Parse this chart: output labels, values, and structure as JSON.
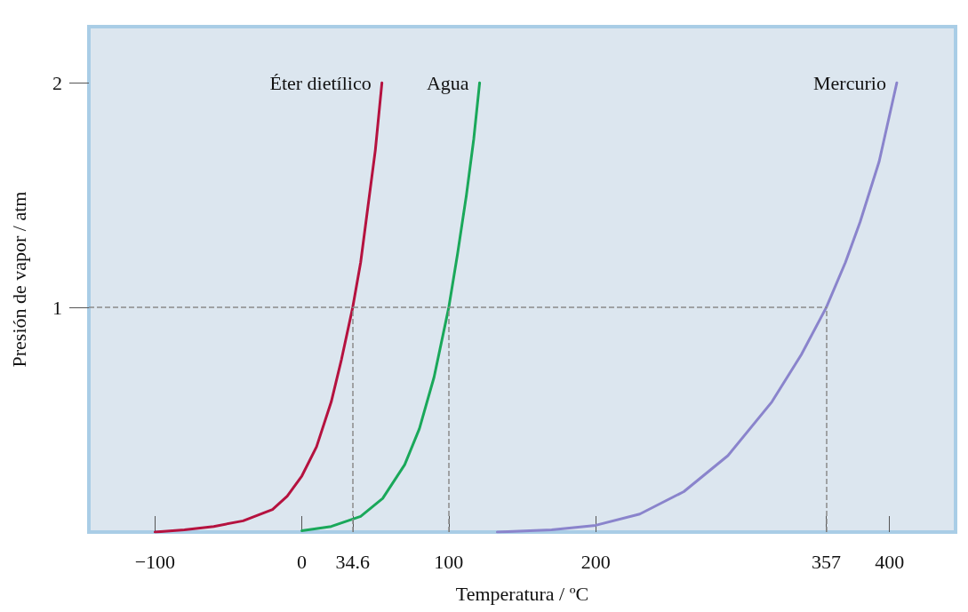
{
  "chart_data": {
    "type": "line",
    "xlabel": "Temperatura / ºC",
    "ylabel": "Presión de vapor / atm",
    "xlim": [
      -145,
      445
    ],
    "ylim": [
      0,
      2.25
    ],
    "xticks": [
      -100,
      0,
      34.6,
      100,
      200,
      357,
      400
    ],
    "yticks": [
      1,
      2
    ],
    "grid": false,
    "legend": false,
    "marker": "none",
    "line_style": "solid",
    "series": [
      {
        "name": "Éter dietílico",
        "color": "#b5123f",
        "x": [
          -100,
          -80,
          -60,
          -40,
          -20,
          -10,
          0,
          10,
          20,
          27,
          34.6,
          40,
          45,
          50,
          54.5
        ],
        "values": [
          0,
          0.01,
          0.025,
          0.05,
          0.1,
          0.16,
          0.25,
          0.38,
          0.58,
          0.77,
          1.0,
          1.2,
          1.45,
          1.7,
          2.0
        ]
      },
      {
        "name": "Agua",
        "color": "#1aa85a",
        "x": [
          0,
          20,
          40,
          55,
          70,
          80,
          90,
          100,
          106,
          112,
          117,
          121
        ],
        "values": [
          0.006,
          0.025,
          0.07,
          0.15,
          0.3,
          0.46,
          0.69,
          1.0,
          1.24,
          1.5,
          1.75,
          2.0
        ]
      },
      {
        "name": "Mercurio",
        "color": "#8a84cc",
        "x": [
          133,
          170,
          200,
          230,
          260,
          290,
          320,
          340,
          357,
          370,
          380,
          393,
          405
        ],
        "values": [
          0,
          0.01,
          0.03,
          0.08,
          0.18,
          0.34,
          0.58,
          0.79,
          1.0,
          1.2,
          1.38,
          1.65,
          2.0
        ]
      }
    ],
    "ref_lines": [
      {
        "axis": "y",
        "value": 1,
        "color": "#8a8a8a",
        "line_style": "dashed"
      },
      {
        "axis": "x",
        "value": 34.6,
        "color": "#8a8a8a",
        "line_style": "dashed"
      },
      {
        "axis": "x",
        "value": 100,
        "color": "#8a8a8a",
        "line_style": "dashed"
      },
      {
        "axis": "x",
        "value": 357,
        "color": "#8a8a8a",
        "line_style": "dashed"
      }
    ]
  }
}
